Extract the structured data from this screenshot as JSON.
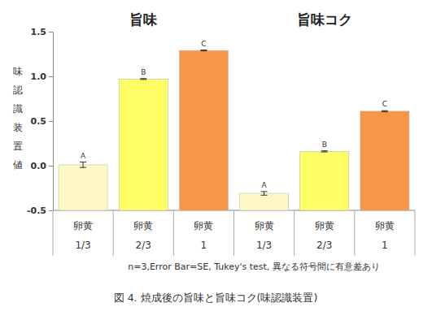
{
  "chart_data": {
    "type": "bar",
    "group_labels": [
      "旨味",
      "旨味コク"
    ],
    "categories": [
      "卵黄\n1/3",
      "卵黄\n2/3",
      "卵黄\n1",
      "卵黄\n1/3",
      "卵黄\n2/3",
      "卵黄\n1"
    ],
    "values": [
      0.01,
      0.97,
      1.29,
      -0.31,
      0.16,
      0.61
    ],
    "errors": [
      0.03,
      0.005,
      0.005,
      0.02,
      0.006,
      0.006
    ],
    "annotations": [
      "A",
      "B",
      "C",
      "A",
      "B",
      "C"
    ],
    "colors": [
      "#fff8c4",
      "#ffff66",
      "#f79646",
      "#fff8c4",
      "#ffff66",
      "#f79646"
    ],
    "y_label": "味認識装置値",
    "ylim": [
      -0.5,
      1.5
    ],
    "yticks": [
      -0.5,
      {
        "value": 0,
        "label": "0.0"
      },
      0.5,
      {
        "value": 1,
        "label": "1.0"
      },
      1.5
    ],
    "grid": false,
    "note": "n=3,Error Bar=SE, Tukey's test, 異なる符号間に有意差あり",
    "caption": "図 4. 焼成後の旨味と旨味コク(味認識装置)"
  }
}
